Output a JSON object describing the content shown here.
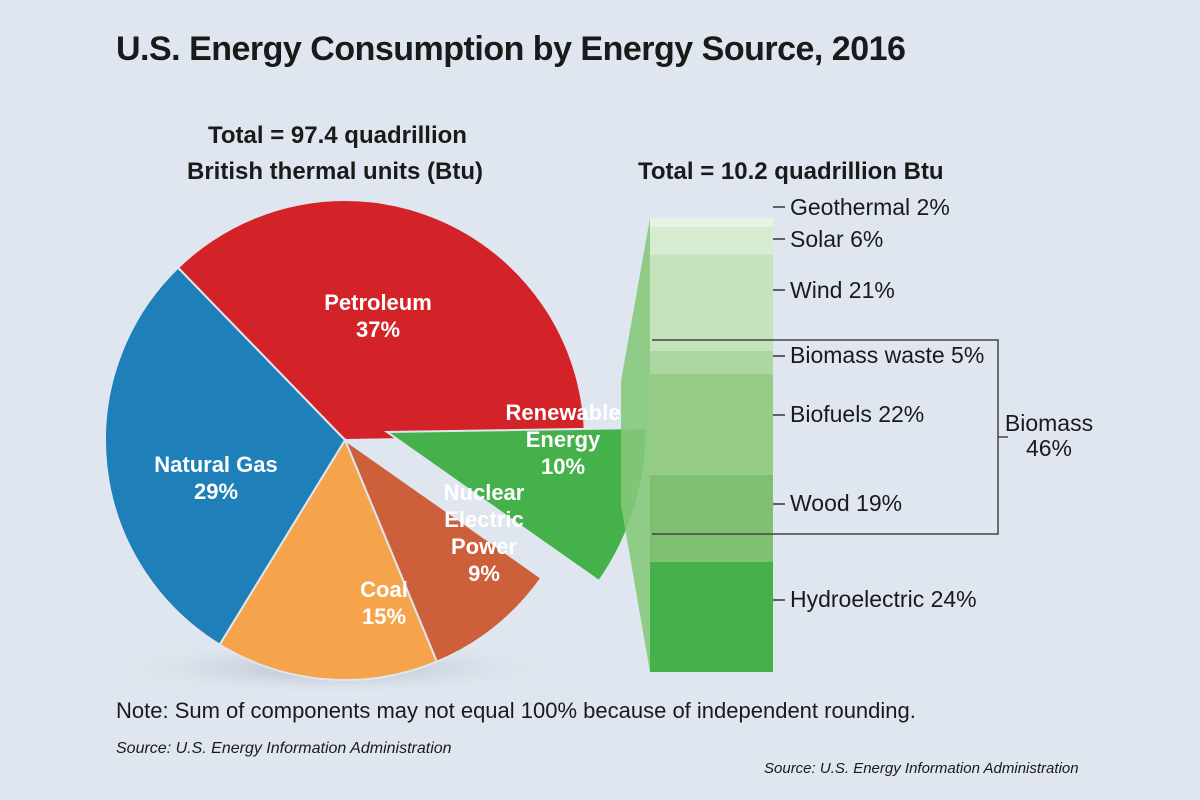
{
  "title": "U.S. Energy Consumption by Energy Source, 2016",
  "pie_subtitle_line1": "Total = 97.4 quadrillion",
  "pie_subtitle_line2": "British thermal units (Btu)",
  "bar_subtitle": "Total = 10.2 quadrillion Btu",
  "note": "Note: Sum of components may not equal 100% because of independent rounding.",
  "source_left": "Source: U.S. Energy Information Administration",
  "source_right": "Source: U.S. Energy Information Administration",
  "colors": {
    "petroleum": "#d42229",
    "natural_gas": "#1f7fb8",
    "coal": "#f6a44c",
    "nuclear": "#cd5f3b",
    "renewable": "#44b14a",
    "geothermal": "#e8f2e4",
    "solar": "#d6ebcf",
    "wind": "#c5e3bb",
    "biomass_waste": "#abd69f",
    "biofuels": "#95cc88",
    "wood": "#7ebf72",
    "hydroelectric": "#45b14a"
  },
  "chart_data": [
    {
      "type": "pie",
      "slices": [
        {
          "key": "petroleum",
          "label_line1": "Petroleum",
          "label_line2": "",
          "pct_label": "37%",
          "value": 37
        },
        {
          "key": "renewable",
          "label_line1": "Renewable",
          "label_line2": "Energy",
          "pct_label": "10%",
          "value": 10
        },
        {
          "key": "nuclear",
          "label_line1": "Nuclear",
          "label_line2": "Electric",
          "label_line3": "Power",
          "pct_label": "9%",
          "value": 9
        },
        {
          "key": "coal",
          "label_line1": "Coal",
          "label_line2": "",
          "pct_label": "15%",
          "value": 15
        },
        {
          "key": "natural_gas",
          "label_line1": "Natural Gas",
          "label_line2": "",
          "pct_label": "29%",
          "value": 29
        }
      ]
    },
    {
      "type": "bar",
      "stacked": true,
      "segments": [
        {
          "key": "geothermal",
          "label": "Geothermal 2%",
          "value": 2
        },
        {
          "key": "solar",
          "label": "Solar 6%",
          "value": 6
        },
        {
          "key": "wind",
          "label": "Wind 21%",
          "value": 21
        },
        {
          "key": "biomass_waste",
          "label": "Biomass waste 5%",
          "value": 5
        },
        {
          "key": "biofuels",
          "label": "Biofuels 22%",
          "value": 22
        },
        {
          "key": "wood",
          "label": "Wood 19%",
          "value": 19
        },
        {
          "key": "hydroelectric",
          "label": "Hydroelectric 24%",
          "value": 24
        }
      ],
      "bracket_label_line1": "Biomass",
      "bracket_label_line2": "46%"
    }
  ]
}
